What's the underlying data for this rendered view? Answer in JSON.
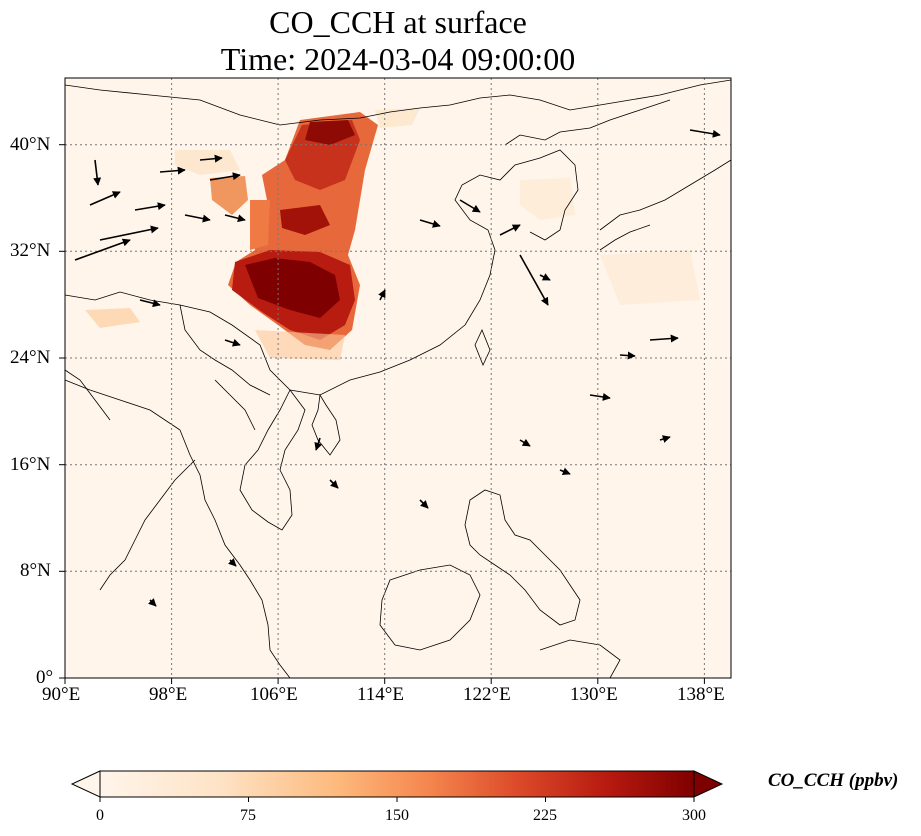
{
  "title": {
    "line1": "CO_CCH at surface",
    "line2": "Time: 2024-03-04 09:00:00"
  },
  "map": {
    "lon_range": [
      90,
      140
    ],
    "lat_range": [
      0,
      45
    ],
    "lon_ticks": [
      "90°E",
      "98°E",
      "106°E",
      "114°E",
      "122°E",
      "130°E",
      "138°E"
    ],
    "lat_ticks": [
      "0°",
      "8°N",
      "16°N",
      "24°N",
      "32°N",
      "40°N"
    ],
    "gridlines": true,
    "background_color": "#fff5eb"
  },
  "colorbar": {
    "label": "CO_CCH (ppbv)",
    "ticks": [
      "0",
      "75",
      "150",
      "225",
      "300"
    ],
    "range": [
      0,
      300
    ],
    "extend": "both",
    "colors": [
      "#fff5eb",
      "#fdd49e",
      "#fdae6b",
      "#f16913",
      "#d94801",
      "#a63603",
      "#7f0000"
    ]
  }
}
